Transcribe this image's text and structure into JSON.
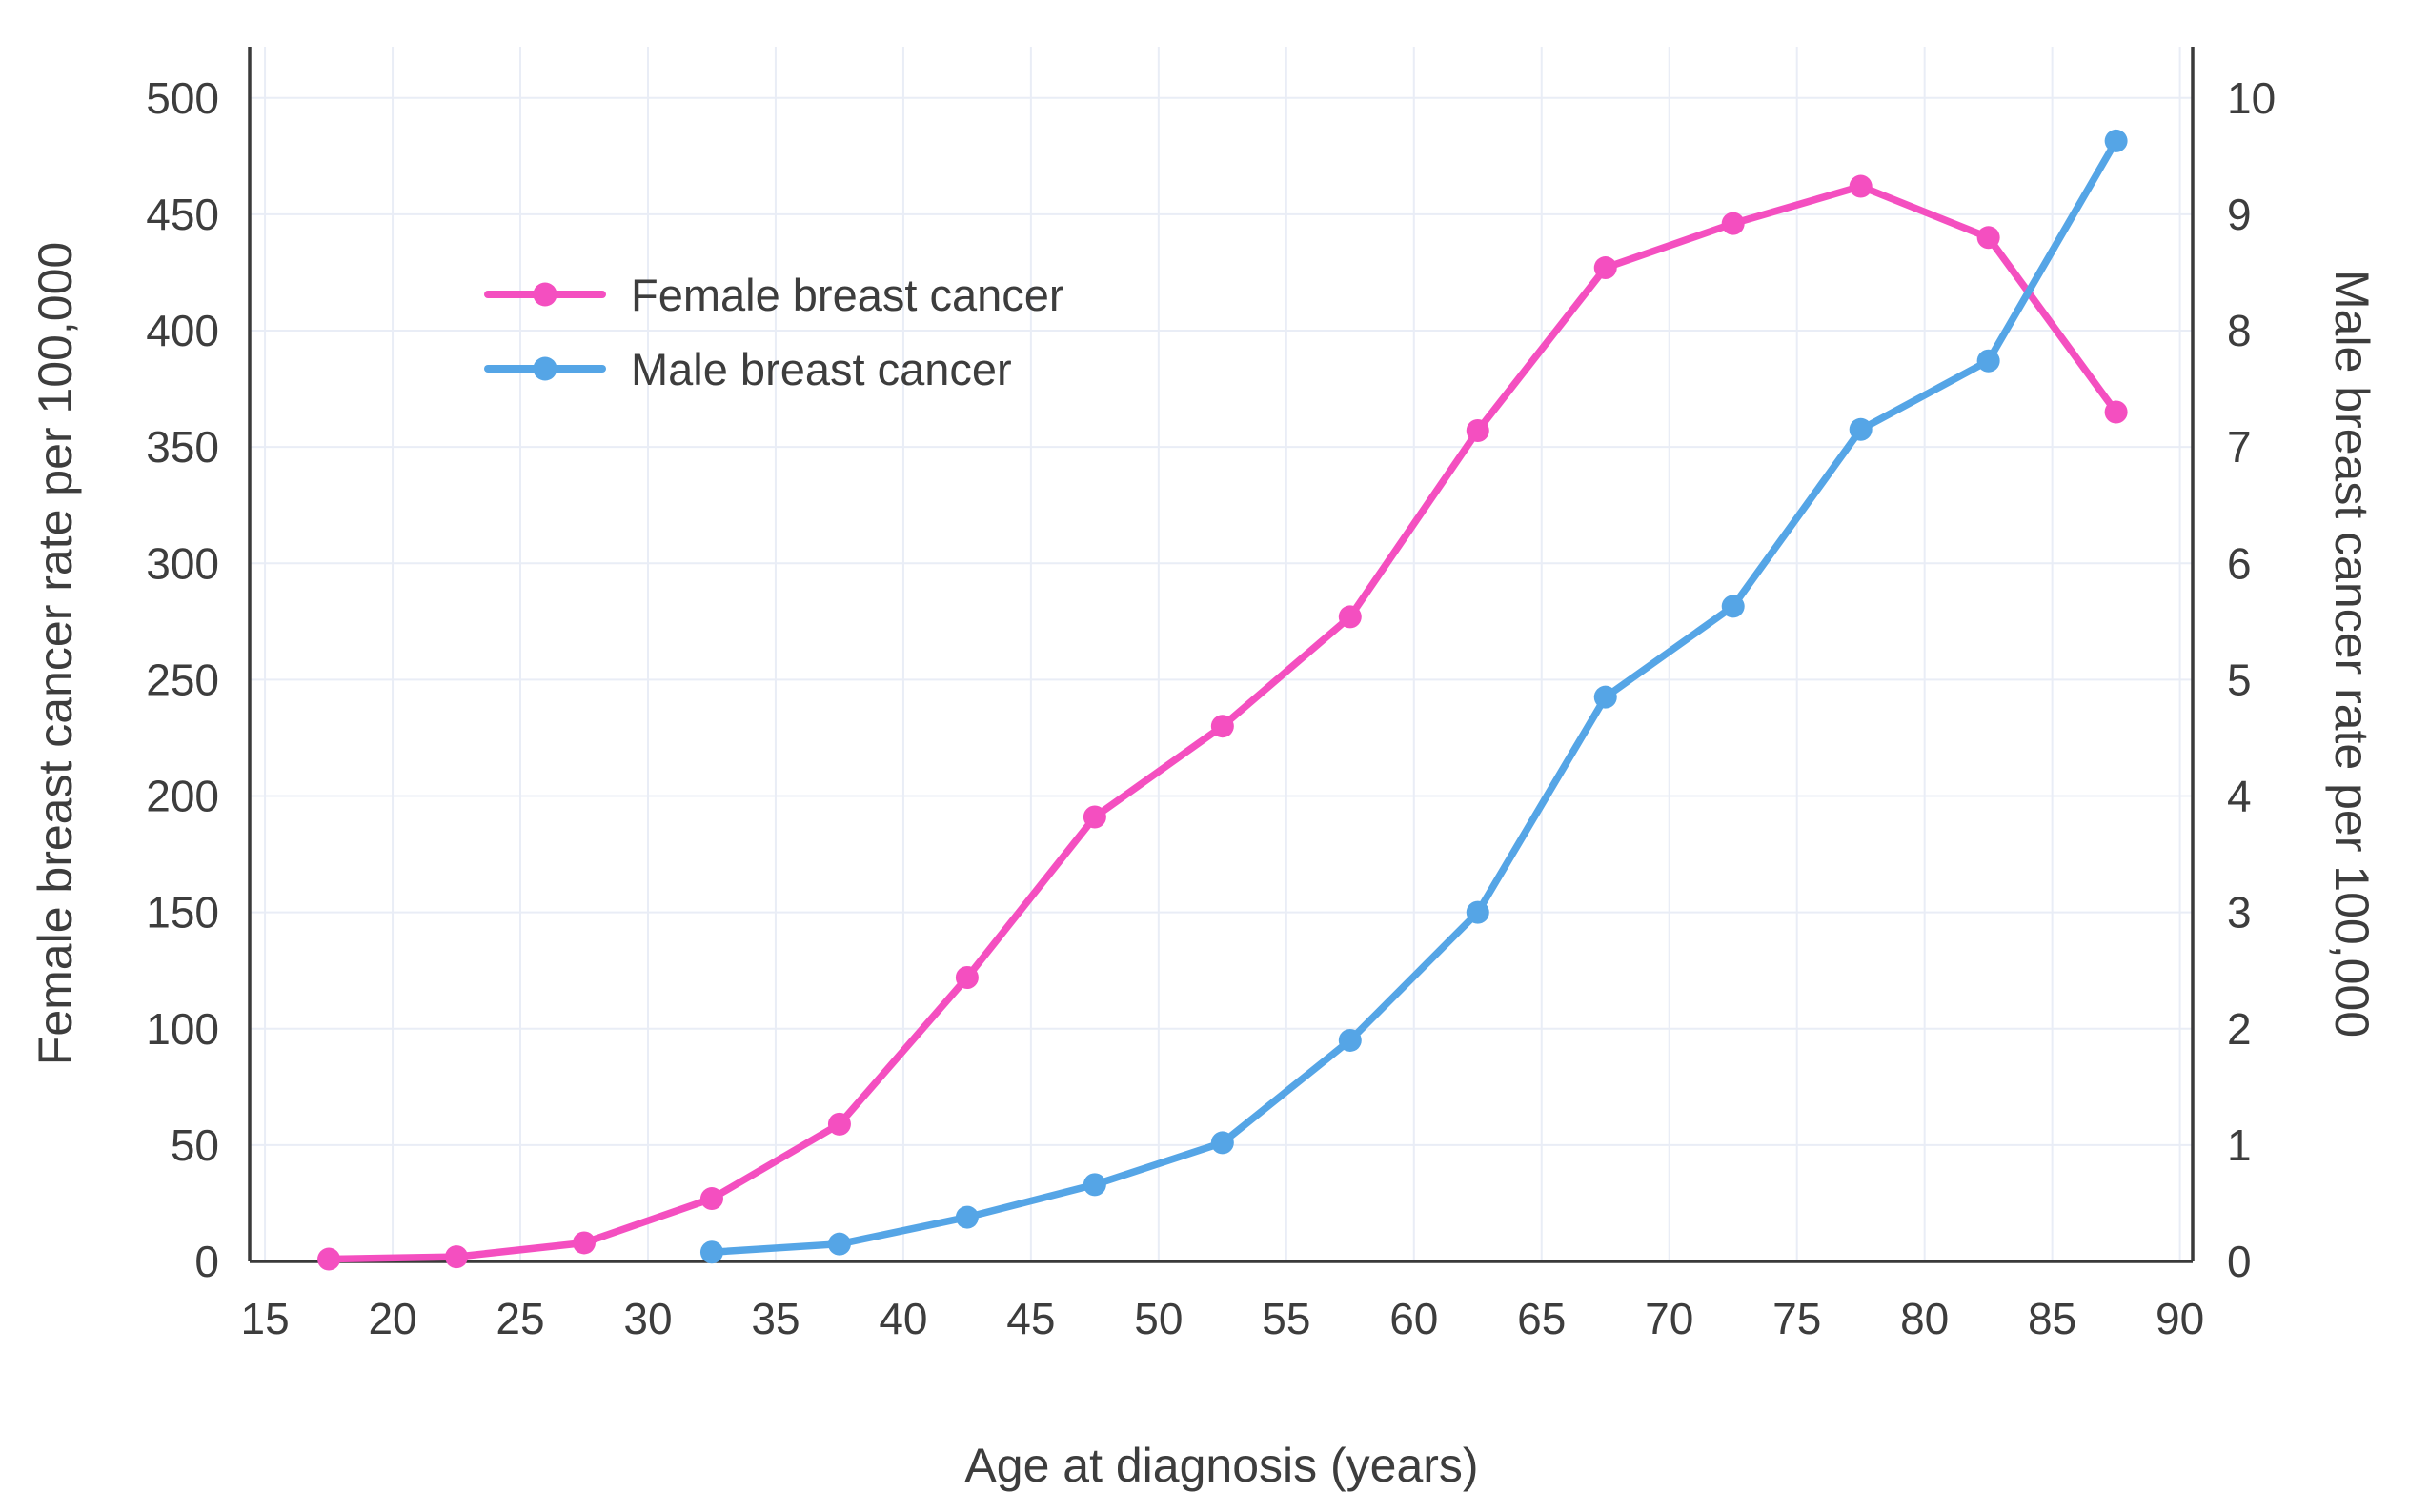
{
  "chart_data": {
    "type": "line",
    "title": "",
    "xlabel": "Age at diagnosis (years)",
    "ylabel_left": "Female breast cancer rate per 100,000",
    "ylabel_right": "Male breast cancer rate per 100,000",
    "x": [
      17.5,
      22.5,
      27.5,
      32.5,
      37.5,
      42.5,
      47.5,
      52.5,
      57.5,
      62.5,
      67.5,
      72.5,
      77.5,
      82.5,
      87.5
    ],
    "x_ticks": [
      15,
      20,
      25,
      30,
      35,
      40,
      45,
      50,
      55,
      60,
      65,
      70,
      75,
      80,
      85,
      90
    ],
    "xlim": [
      14.4,
      90.5
    ],
    "ylim_left": [
      0,
      522
    ],
    "ylim_right": [
      0,
      10.44
    ],
    "y_ticks_left": [
      0,
      50,
      100,
      150,
      200,
      250,
      300,
      350,
      400,
      450,
      500
    ],
    "y_ticks_right": [
      0,
      1,
      2,
      3,
      4,
      5,
      6,
      7,
      8,
      9,
      10
    ],
    "grid": true,
    "legend_position": "top-left-inside",
    "series": [
      {
        "name": "Female breast cancer",
        "axis": "left",
        "color": "#f44fc0",
        "values": [
          1,
          2,
          8,
          27,
          59,
          122,
          191,
          230,
          277,
          357,
          427,
          446,
          462,
          440,
          365
        ]
      },
      {
        "name": "Male breast cancer",
        "axis": "right",
        "color": "#55a5e6",
        "values": [
          null,
          null,
          null,
          0.08,
          0.15,
          0.38,
          0.66,
          1.02,
          1.9,
          3.0,
          4.85,
          5.63,
          7.15,
          7.74,
          9.63
        ]
      }
    ],
    "colors": {
      "axis_line": "#3a3a3a",
      "grid_line": "#e9edf6",
      "tick_text": "#3d3d3d"
    }
  }
}
